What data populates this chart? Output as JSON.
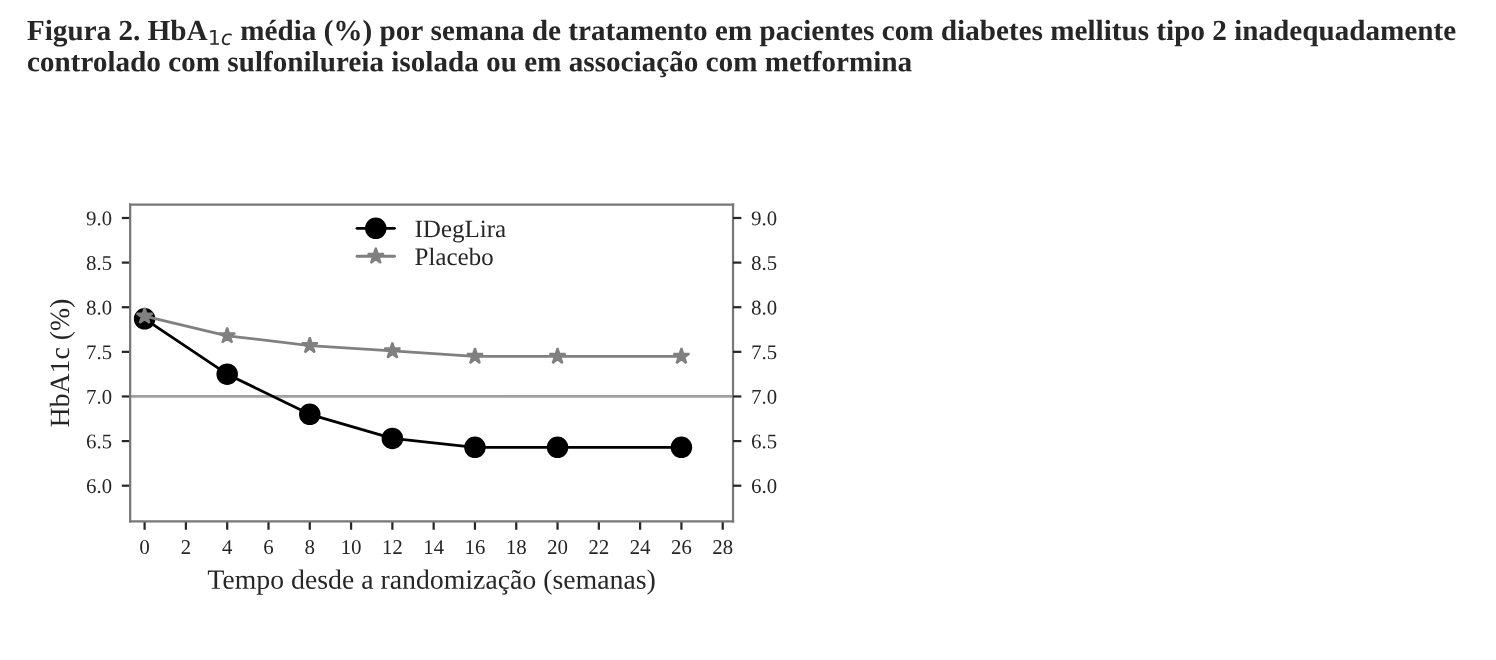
{
  "chart_data": {
    "type": "line",
    "title": "Figura 2. HbA$_{1c}$ média (%) por semana de tratamento em pacientes com diabetes mellitus tipo 2 inadequadamente controlado com sulfonilureia isolada ou em associação com metformina",
    "xlabel": "Tempo desde a randomização (semanas)",
    "ylabel": "HbA1c (%)",
    "x": [
      0,
      4,
      8,
      12,
      16,
      20,
      26
    ],
    "series": [
      {
        "name": "IDegLira",
        "color": "#000000",
        "marker": "circle",
        "values": [
          7.87,
          7.25,
          6.8,
          6.53,
          6.43,
          6.43,
          6.43
        ]
      },
      {
        "name": "Placebo",
        "color": "#808080",
        "marker": "star",
        "values": [
          7.9,
          7.68,
          7.57,
          7.51,
          7.45,
          7.45,
          7.45
        ]
      }
    ],
    "xlim": [
      -0.7,
      28.5
    ],
    "xticks": [
      0,
      2,
      4,
      6,
      8,
      10,
      12,
      14,
      16,
      18,
      20,
      22,
      24,
      26,
      28
    ],
    "ylim": [
      5.6,
      9.15
    ],
    "yticks": [
      {
        "value": 6,
        "label": "6.0"
      },
      6.5,
      {
        "value": 7,
        "label": "7.0"
      },
      7.5,
      {
        "value": 8,
        "label": "8.0"
      },
      8.5,
      {
        "value": 9,
        "label": "9.0"
      }
    ],
    "y2lim": [
      5.6,
      9.15
    ],
    "y2ticks": [
      {
        "value": 6,
        "label": "6.0"
      },
      6.5,
      {
        "value": 7,
        "label": "7.0"
      },
      7.5,
      {
        "value": 8,
        "label": "8.0"
      },
      8.5,
      {
        "value": 9,
        "label": "9.0"
      }
    ],
    "ref_lines": [
      {
        "axis": "y",
        "value": 7.0,
        "label": null,
        "color": "#a0a0a0"
      }
    ],
    "legend": "top",
    "grid": false
  }
}
